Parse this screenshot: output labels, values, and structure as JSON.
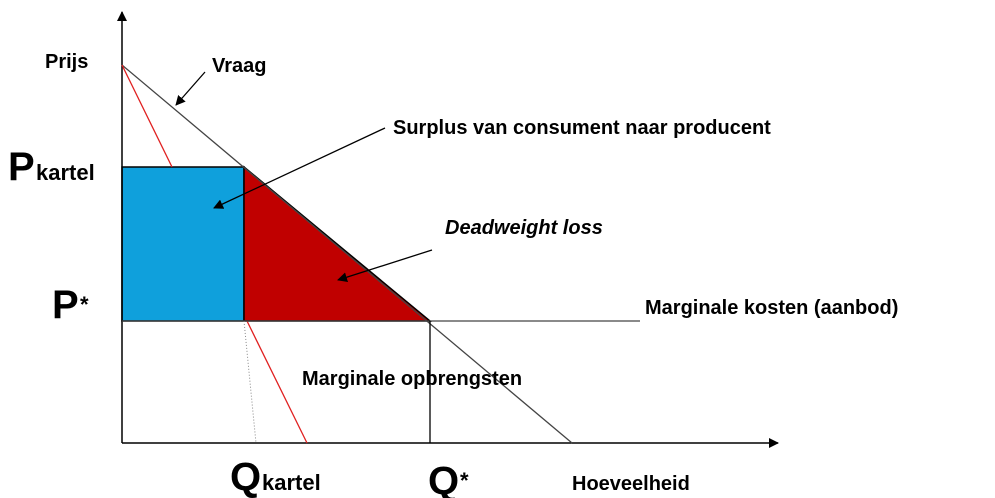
{
  "axes": {
    "y_label": "Prijs",
    "x_label": "Hoeveelheid"
  },
  "curves": {
    "demand": "Vraag",
    "marginal_cost": "Marginale kosten (aanbod)",
    "marginal_revenue": "Marginale opbrengsten"
  },
  "areas": {
    "surplus": "Surplus van consument naar producent",
    "deadweight": "Deadweight loss"
  },
  "prices": {
    "cartel": {
      "symbol": "P",
      "sub": "kartel"
    },
    "equilibrium": {
      "symbol": "P",
      "sub": "*"
    }
  },
  "quantities": {
    "cartel": {
      "symbol": "Q",
      "sub": "kartel"
    },
    "equilibrium": {
      "symbol": "Q",
      "sub": "*"
    }
  }
}
